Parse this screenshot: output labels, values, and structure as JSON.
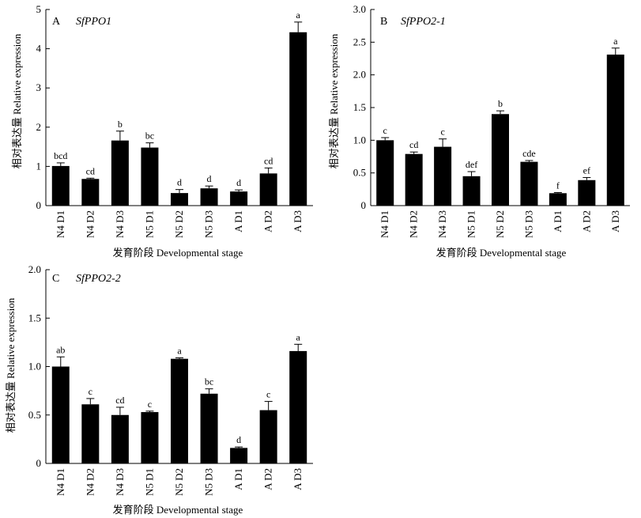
{
  "chart_data": [
    {
      "type": "bar",
      "panel_letter": "A",
      "gene": "SfPPO1",
      "xlabel": "发育阶段 Developmental stage",
      "ylabel": "相对表达量 Relative expression",
      "categories": [
        "N4 D1",
        "N4 D2",
        "N4 D3",
        "N5 D1",
        "N5 D2",
        "N5 D3",
        "A D1",
        "A D2",
        "A D3"
      ],
      "values": [
        1.01,
        0.68,
        1.66,
        1.48,
        0.32,
        0.44,
        0.36,
        0.82,
        4.42
      ],
      "errors": [
        0.08,
        0.02,
        0.24,
        0.12,
        0.09,
        0.06,
        0.04,
        0.14,
        0.26
      ],
      "letters": [
        "bcd",
        "cd",
        "b",
        "bc",
        "d",
        "d",
        "d",
        "cd",
        "a"
      ],
      "ylim": [
        0,
        5
      ],
      "yticks": [
        "0",
        "1",
        "2",
        "3",
        "4",
        "5"
      ],
      "color": "#000000"
    },
    {
      "type": "bar",
      "panel_letter": "B",
      "gene": "SfPPO2-1",
      "xlabel": "发育阶段 Developmental stage",
      "ylabel": "相对表达量 Relative expression",
      "categories": [
        "N4 D1",
        "N4 D2",
        "N4 D3",
        "N5 D1",
        "N5 D2",
        "N5 D3",
        "A D1",
        "A D2",
        "A D3"
      ],
      "values": [
        1.0,
        0.79,
        0.9,
        0.45,
        1.4,
        0.67,
        0.19,
        0.39,
        2.31
      ],
      "errors": [
        0.04,
        0.03,
        0.12,
        0.07,
        0.05,
        0.02,
        0.01,
        0.04,
        0.1
      ],
      "letters": [
        "c",
        "cd",
        "c",
        "def",
        "b",
        "cde",
        "f",
        "ef",
        "a"
      ],
      "ylim": [
        0,
        3
      ],
      "yticks": [
        "0",
        "0.5",
        "1.0",
        "1.5",
        "2.0",
        "2.5",
        "3.0"
      ],
      "color": "#000000"
    },
    {
      "type": "bar",
      "panel_letter": "C",
      "gene": "SfPPO2-2",
      "xlabel": "发育阶段 Developmental stage",
      "ylabel": "相对表达量 Relative expression",
      "categories": [
        "N4 D1",
        "N4 D2",
        "N4 D3",
        "N5 D1",
        "N5 D2",
        "N5 D3",
        "A D1",
        "A D2",
        "A D3"
      ],
      "values": [
        1.0,
        0.61,
        0.5,
        0.53,
        1.08,
        0.72,
        0.16,
        0.55,
        1.16
      ],
      "errors": [
        0.1,
        0.06,
        0.08,
        0.01,
        0.01,
        0.05,
        0.01,
        0.09,
        0.07
      ],
      "letters": [
        "ab",
        "c",
        "cd",
        "c",
        "a",
        "bc",
        "d",
        "c",
        "a"
      ],
      "ylim": [
        0,
        2
      ],
      "yticks": [
        "0",
        "0.5",
        "1.0",
        "1.5",
        "2.0"
      ],
      "color": "#000000"
    }
  ]
}
